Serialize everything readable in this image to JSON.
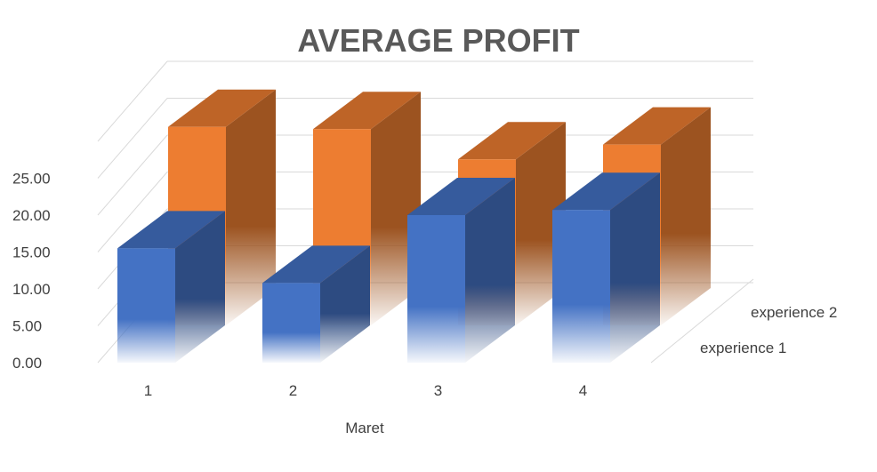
{
  "chart_data": {
    "type": "bar",
    "variant": "3d-column",
    "title": "AVERAGE PROFIT",
    "xlabel": "Maret",
    "ylabel": "",
    "categories": [
      "1",
      "2",
      "3",
      "4"
    ],
    "series": [
      {
        "name": "experience 1",
        "values": [
          15.5,
          10.8,
          20.0,
          20.7
        ],
        "color": "#4472C4"
      },
      {
        "name": "experience 2",
        "values": [
          26.9,
          26.6,
          22.5,
          24.5
        ],
        "color": "#ED7D31"
      }
    ],
    "y_ticks": [
      "0.00",
      "5.00",
      "10.00",
      "15.00",
      "20.00",
      "25.00"
    ],
    "ylim": [
      0,
      25
    ],
    "grid": true,
    "legend": "depth-axis-right"
  },
  "colors": {
    "title": "#595959",
    "tick_label": "#404040",
    "gridline": "#d9d9d9",
    "background": "#ffffff"
  }
}
